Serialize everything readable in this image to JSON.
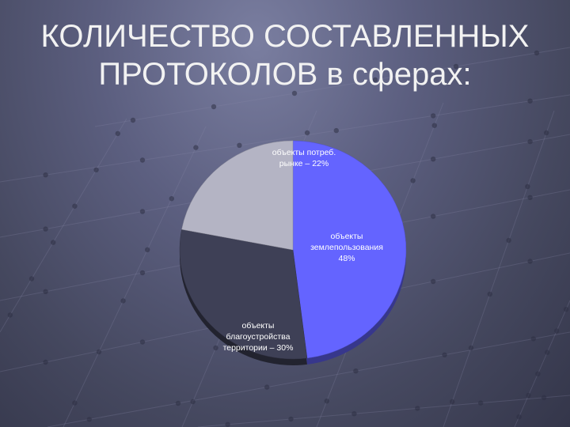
{
  "slide": {
    "title_line1": "КОЛИЧЕСТВО СОСТАВЛЕННЫХ",
    "title_line2": "ПРОТОКОЛОВ в сферах:"
  },
  "chart_data": {
    "type": "pie",
    "slices": [
      {
        "label_lines": [
          "объекты",
          "землепользования",
          "48%"
        ],
        "value": 48,
        "color": "#6464ff"
      },
      {
        "label_lines": [
          "объекты",
          "благоустройства",
          "территории – 30%"
        ],
        "value": 30,
        "color": "#3e4056"
      },
      {
        "label_lines": [
          "объекты потреб.",
          "рынке – 22%"
        ],
        "value": 22,
        "color": "#b4b4c4"
      }
    ]
  }
}
